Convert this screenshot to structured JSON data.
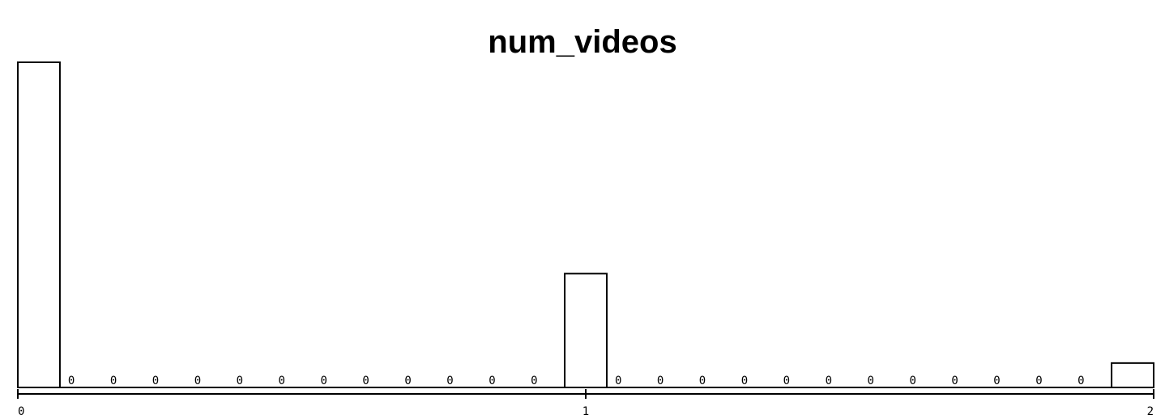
{
  "chart_data": {
    "type": "bar",
    "title": "num_videos",
    "xlabel": "",
    "ylabel": "",
    "xlim": [
      0,
      2
    ],
    "bins": 27,
    "x_ticks": [
      "0",
      "1",
      "2"
    ],
    "values": [
      100,
      0,
      0,
      0,
      0,
      0,
      0,
      0,
      0,
      0,
      0,
      0,
      0,
      35,
      0,
      0,
      0,
      0,
      0,
      0,
      0,
      0,
      0,
      0,
      0,
      0,
      7.5
    ],
    "zero_label": "0",
    "grid": false,
    "legend": "none"
  },
  "colors": {
    "bar_fill": "#ffffff",
    "bar_stroke": "#000000"
  }
}
